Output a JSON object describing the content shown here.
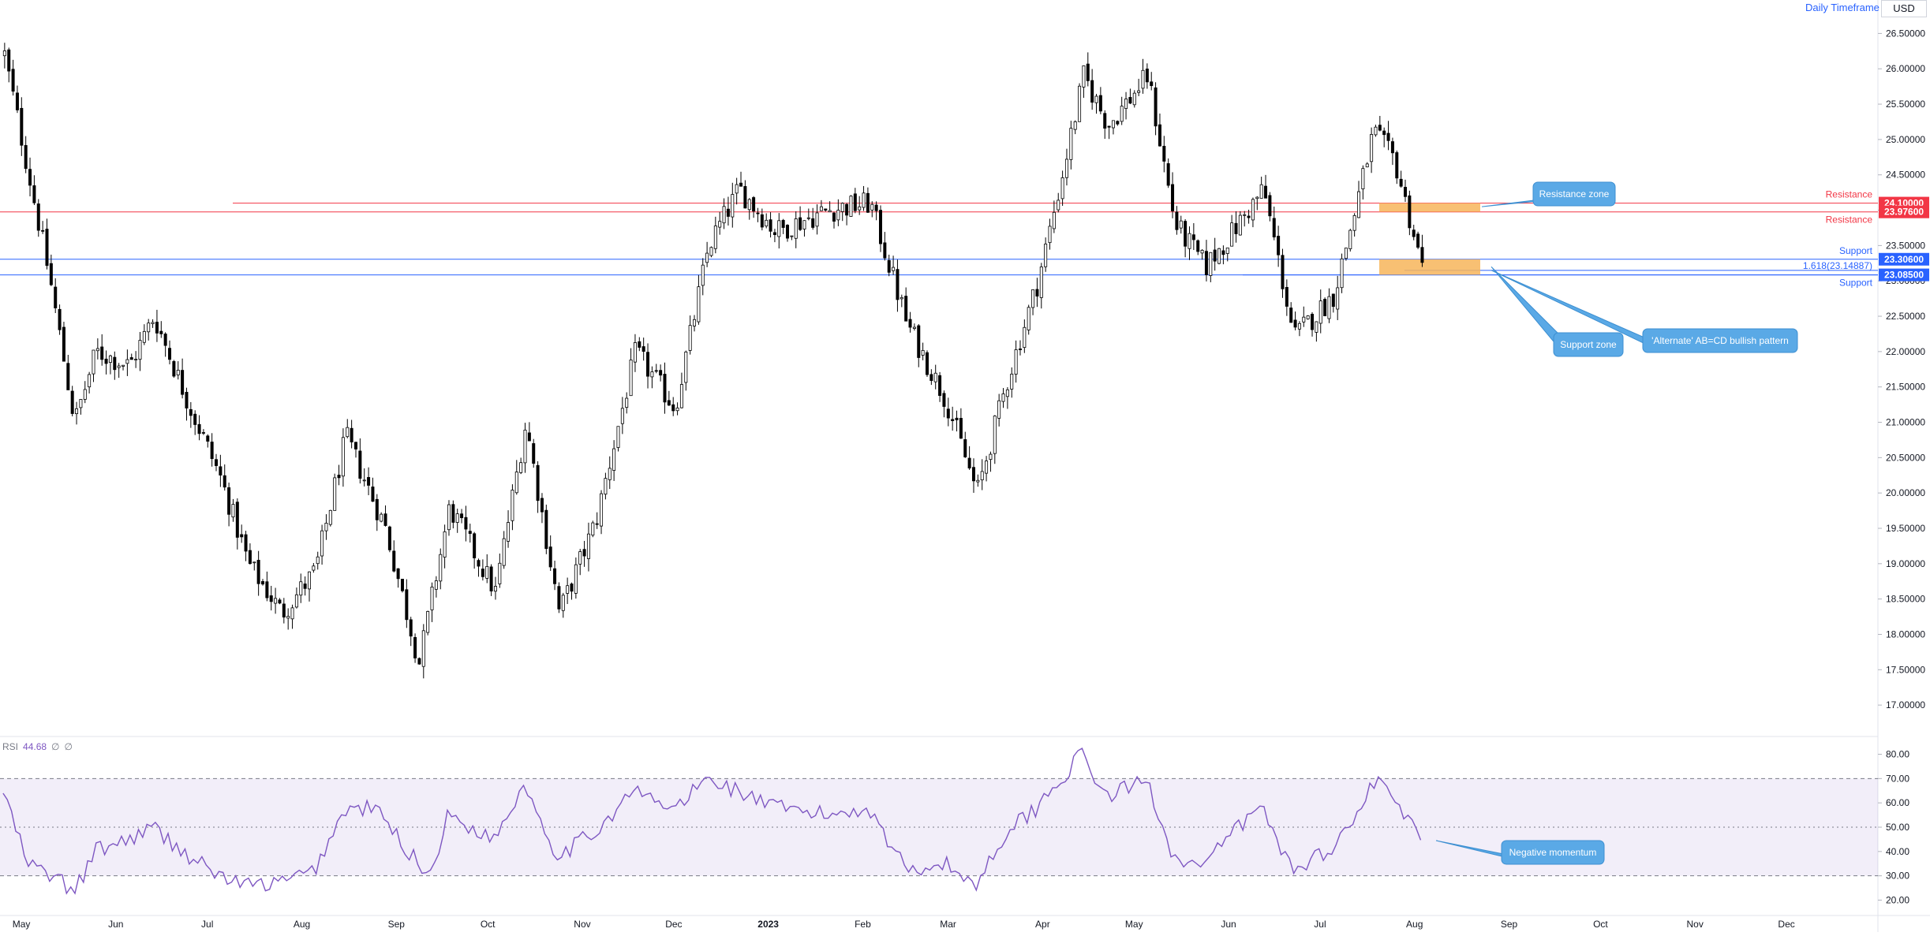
{
  "header": {
    "timeframe": "Daily Timeframe",
    "currency": "USD"
  },
  "chart_data": {
    "type": "candlestick",
    "price_axis": {
      "min": 16.6,
      "max": 26.75,
      "ticks": [
        "26.50000",
        "26.00000",
        "25.50000",
        "25.00000",
        "24.50000",
        "24.00000",
        "23.50000",
        "23.00000",
        "22.50000",
        "22.00000",
        "21.50000",
        "21.00000",
        "20.50000",
        "20.00000",
        "19.50000",
        "19.00000",
        "18.50000",
        "18.00000",
        "17.50000",
        "17.00000"
      ]
    },
    "time_axis": {
      "labels": [
        "May",
        "Jun",
        "Jul",
        "Aug",
        "Sep",
        "Oct",
        "Nov",
        "Dec",
        "2023",
        "Feb",
        "Mar",
        "Apr",
        "May",
        "Jun",
        "Jul",
        "Aug",
        "Sep",
        "Oct",
        "Nov",
        "Dec"
      ]
    },
    "price_path": [
      [
        "2022-04-25",
        26.2
      ],
      [
        "2022-05-03",
        24.5
      ],
      [
        "2022-05-10",
        23.0
      ],
      [
        "2022-05-18",
        21.0
      ],
      [
        "2022-05-25",
        22.0
      ],
      [
        "2022-06-05",
        21.8
      ],
      [
        "2022-06-13",
        22.5
      ],
      [
        "2022-06-25",
        21.2
      ],
      [
        "2022-07-05",
        20.2
      ],
      [
        "2022-07-14",
        19.0
      ],
      [
        "2022-07-25",
        18.3
      ],
      [
        "2022-08-05",
        18.9
      ],
      [
        "2022-08-15",
        20.8
      ],
      [
        "2022-08-28",
        19.5
      ],
      [
        "2022-09-08",
        17.6
      ],
      [
        "2022-09-18",
        19.8
      ],
      [
        "2022-10-03",
        18.6
      ],
      [
        "2022-10-13",
        21.0
      ],
      [
        "2022-10-24",
        18.3
      ],
      [
        "2022-11-05",
        19.6
      ],
      [
        "2022-11-18",
        22.0
      ],
      [
        "2022-12-01",
        21.2
      ],
      [
        "2022-12-12",
        23.5
      ],
      [
        "2022-12-22",
        24.3
      ],
      [
        "2023-01-03",
        23.7
      ],
      [
        "2023-01-20",
        24.0
      ],
      [
        "2023-02-03",
        24.1
      ],
      [
        "2023-02-15",
        22.4
      ],
      [
        "2023-02-28",
        21.3
      ],
      [
        "2023-03-10",
        20.0
      ],
      [
        "2023-03-20",
        21.6
      ],
      [
        "2023-03-30",
        23.0
      ],
      [
        "2023-04-07",
        24.5
      ],
      [
        "2023-04-14",
        25.9
      ],
      [
        "2023-04-22",
        25.2
      ],
      [
        "2023-05-05",
        25.9
      ],
      [
        "2023-05-14",
        23.8
      ],
      [
        "2023-05-24",
        23.2
      ],
      [
        "2023-06-02",
        23.7
      ],
      [
        "2023-06-12",
        24.3
      ],
      [
        "2023-06-22",
        22.2
      ],
      [
        "2023-07-05",
        22.8
      ],
      [
        "2023-07-12",
        24.0
      ],
      [
        "2023-07-18",
        25.1
      ],
      [
        "2023-07-25",
        24.7
      ],
      [
        "2023-08-03",
        23.2
      ]
    ],
    "levels": [
      {
        "name": "Resistance",
        "value": "24.10000",
        "price": 24.1,
        "color": "#f23645"
      },
      {
        "name": "Resistance",
        "value": "23.97600",
        "price": 23.976,
        "color": "#f23645"
      },
      {
        "name": "Support",
        "value": "23.30600",
        "price": 23.306,
        "color": "#2962ff"
      },
      {
        "name": "Support",
        "value": "23.08500",
        "price": 23.085,
        "color": "#2962ff"
      }
    ],
    "fib_label": "1.618(23.14887)",
    "fib_price": 23.14887,
    "zones": [
      {
        "name": "Resistance zone",
        "top": 24.1,
        "bottom": 23.976,
        "color": "#f7b55b"
      },
      {
        "name": "Support zone",
        "top": 23.306,
        "bottom": 23.085,
        "color": "#f7b55b"
      }
    ],
    "callouts": {
      "resistance_zone": "Resistance zone",
      "support_zone": "Support zone",
      "abcd": "'Alternate' AB=CD bullish pattern",
      "momentum": "Negative momentum"
    },
    "rsi": {
      "label": "RSI",
      "value": "44.68",
      "extra": [
        "∅",
        "∅"
      ],
      "ticks": [
        "80.00",
        "70.00",
        "60.00",
        "50.00",
        "40.00",
        "30.00",
        "20.00"
      ],
      "upper_band": 70,
      "lower_band": 30,
      "path": [
        [
          "2022-04-25",
          65
        ],
        [
          "2022-05-03",
          35
        ],
        [
          "2022-05-14",
          28
        ],
        [
          "2022-05-18",
          22
        ],
        [
          "2022-05-25",
          40
        ],
        [
          "2022-06-05",
          45
        ],
        [
          "2022-06-13",
          50
        ],
        [
          "2022-06-25",
          38
        ],
        [
          "2022-07-05",
          30
        ],
        [
          "2022-07-14",
          26
        ],
        [
          "2022-07-25",
          27
        ],
        [
          "2022-08-05",
          32
        ],
        [
          "2022-08-15",
          57
        ],
        [
          "2022-08-25",
          58
        ],
        [
          "2022-09-05",
          40
        ],
        [
          "2022-09-12",
          30
        ],
        [
          "2022-09-18",
          55
        ],
        [
          "2022-10-03",
          45
        ],
        [
          "2022-10-13",
          68
        ],
        [
          "2022-10-24",
          38
        ],
        [
          "2022-11-05",
          48
        ],
        [
          "2022-11-18",
          65
        ],
        [
          "2022-12-01",
          57
        ],
        [
          "2022-12-12",
          70
        ],
        [
          "2022-12-22",
          65
        ],
        [
          "2023-01-03",
          58
        ],
        [
          "2023-01-20",
          55
        ],
        [
          "2023-02-03",
          58
        ],
        [
          "2023-02-15",
          33
        ],
        [
          "2023-02-28",
          35
        ],
        [
          "2023-03-10",
          26
        ],
        [
          "2023-03-20",
          48
        ],
        [
          "2023-03-30",
          58
        ],
        [
          "2023-04-07",
          70
        ],
        [
          "2023-04-14",
          80
        ],
        [
          "2023-04-22",
          62
        ],
        [
          "2023-05-05",
          70
        ],
        [
          "2023-05-14",
          38
        ],
        [
          "2023-05-24",
          33
        ],
        [
          "2023-06-02",
          48
        ],
        [
          "2023-06-12",
          58
        ],
        [
          "2023-06-22",
          32
        ],
        [
          "2023-07-05",
          42
        ],
        [
          "2023-07-12",
          52
        ],
        [
          "2023-07-18",
          70
        ],
        [
          "2023-07-25",
          62
        ],
        [
          "2023-08-03",
          44.68
        ]
      ]
    }
  }
}
